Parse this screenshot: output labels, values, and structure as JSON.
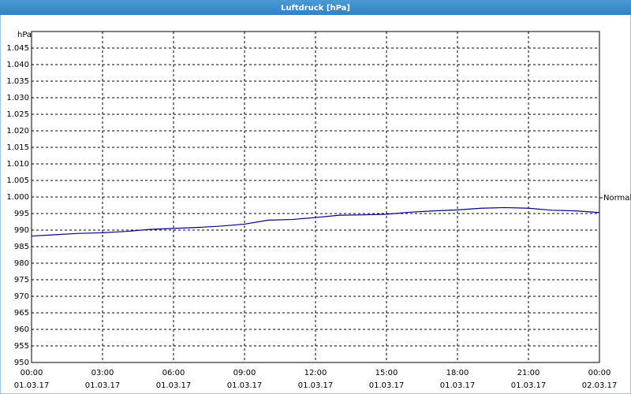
{
  "chart_data": {
    "type": "line",
    "title": "Luftdruck [hPa]",
    "y_label": "hPa",
    "x": [
      0,
      1,
      2,
      3,
      4,
      5,
      6,
      7,
      8,
      9,
      10,
      11,
      12,
      13,
      14,
      15,
      16,
      17,
      18,
      19,
      20,
      21,
      22,
      23,
      24
    ],
    "series": [
      {
        "name": "Normal",
        "color": "#000080",
        "values": [
          988.2,
          988.6,
          989.0,
          989.2,
          989.6,
          990.2,
          990.5,
          990.8,
          991.2,
          991.8,
          993.0,
          993.2,
          993.8,
          994.5,
          994.6,
          994.8,
          995.4,
          995.8,
          996.1,
          996.6,
          996.8,
          996.6,
          996.0,
          995.8,
          995.3
        ]
      }
    ],
    "xlim": [
      0,
      24
    ],
    "xticks": [
      {
        "value": 0,
        "label": "00:00",
        "date": "01.03.17"
      },
      {
        "value": 3,
        "label": "03:00",
        "date": "01.03.17"
      },
      {
        "value": 6,
        "label": "06:00",
        "date": "01.03.17"
      },
      {
        "value": 9,
        "label": "09:00",
        "date": "01.03.17"
      },
      {
        "value": 12,
        "label": "12:00",
        "date": "01.03.17"
      },
      {
        "value": 15,
        "label": "15:00",
        "date": "01.03.17"
      },
      {
        "value": 18,
        "label": "18:00",
        "date": "01.03.17"
      },
      {
        "value": 21,
        "label": "21:00",
        "date": "01.03.17"
      },
      {
        "value": 24,
        "label": "00:00",
        "date": "02.03.17"
      }
    ],
    "ylim": [
      950,
      1050
    ],
    "yticks": [
      950,
      955,
      960,
      965,
      970,
      975,
      980,
      985,
      990,
      995,
      {
        "value": 1000,
        "label": "1.000"
      },
      {
        "value": 1005,
        "label": "1.005"
      },
      {
        "value": 1010,
        "label": "1.010"
      },
      {
        "value": 1015,
        "label": "1.015"
      },
      {
        "value": 1020,
        "label": "1.020"
      },
      {
        "value": 1025,
        "label": "1.025"
      },
      {
        "value": 1030,
        "label": "1.030"
      },
      {
        "value": 1035,
        "label": "1.035"
      },
      {
        "value": 1040,
        "label": "1.040"
      },
      {
        "value": 1045,
        "label": "1.045"
      }
    ],
    "grid": true,
    "legend": "right"
  }
}
